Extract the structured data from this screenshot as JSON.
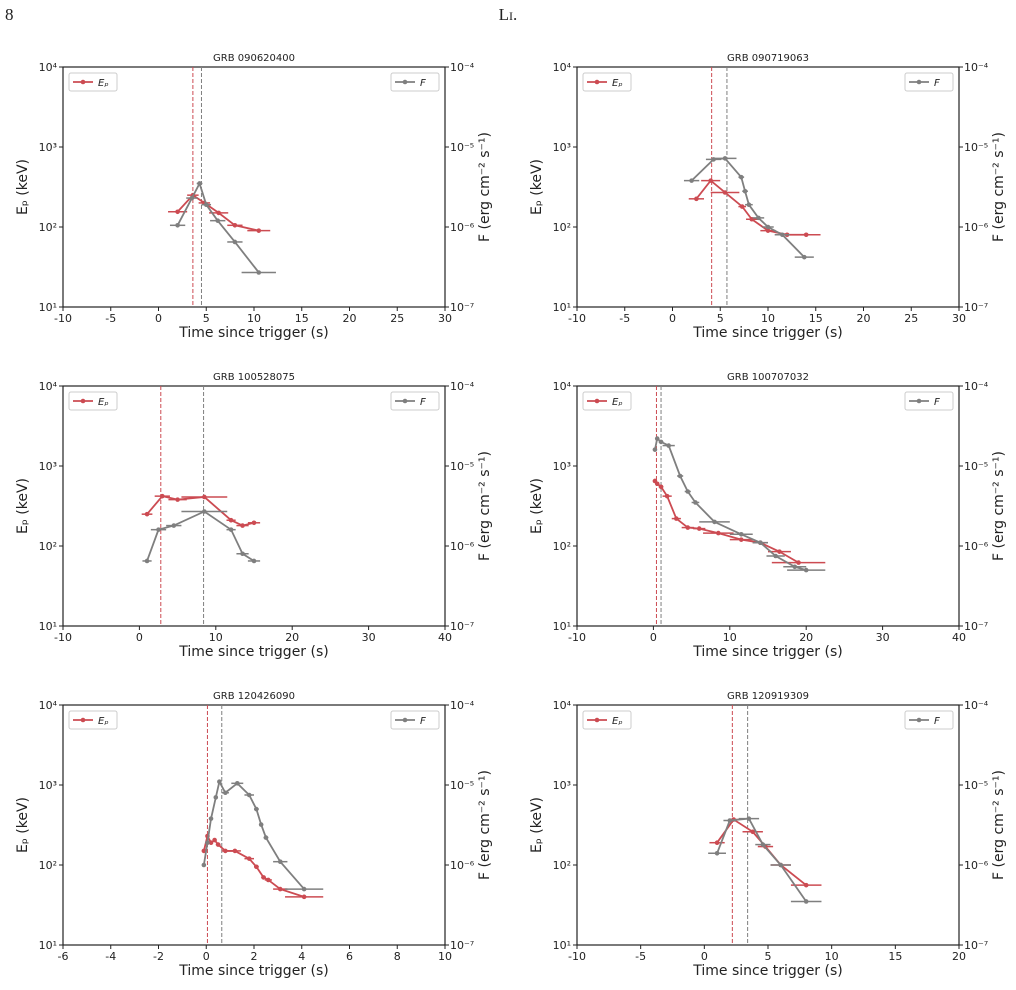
{
  "header": {
    "page_number": "8",
    "running_head": "Li."
  },
  "chart_data": [
    {
      "type": "line",
      "title": "GRB 090620400",
      "xlabel": "Time since trigger (s)",
      "ylabel": "Eₚ (keV)",
      "y2label": "F (erg cm⁻² s⁻¹)",
      "log_y": true,
      "xlim": [
        -10,
        30
      ],
      "xticks": [
        -10,
        -5,
        0,
        5,
        10,
        15,
        20,
        25,
        30
      ],
      "ylim": [
        10,
        10000
      ],
      "yticks": [
        {
          "value": 10,
          "label": "10¹"
        },
        {
          "value": 100,
          "label": "10²"
        },
        {
          "value": 1000,
          "label": "10³"
        },
        {
          "value": 10000,
          "label": "10⁴"
        }
      ],
      "y2lim": [
        1e-07,
        0.0001
      ],
      "y2ticks": [
        {
          "value": 1e-07,
          "label": "10⁻⁷"
        },
        {
          "value": 1e-06,
          "label": "10⁻⁶"
        },
        {
          "value": 1e-05,
          "label": "10⁻⁵"
        },
        {
          "value": 0.0001,
          "label": "10⁻⁴"
        }
      ],
      "vlines": [
        {
          "x": 3.6,
          "color": "#cc4b52"
        },
        {
          "x": 4.5,
          "color": "#7f7f7f"
        }
      ],
      "series": [
        {
          "name": "Eₚ",
          "color": "#cc4b52",
          "legend": "upper left",
          "x": [
            2,
            3.6,
            4.8,
            6.3,
            8,
            10.5
          ],
          "xerr": [
            1,
            0.6,
            0.6,
            1,
            0.8,
            1.2
          ],
          "values": [
            155,
            250,
            200,
            150,
            105,
            90
          ]
        },
        {
          "name": "F",
          "color": "#7f7f7f",
          "legend": "upper right",
          "axis": "y2",
          "x": [
            2,
            3.5,
            4.3,
            5,
            6.2,
            8,
            10.5
          ],
          "xerr": [
            0.8,
            0.6,
            0.3,
            0.5,
            0.8,
            0.8,
            1.8
          ],
          "values": [
            1.05e-06,
            2.3e-06,
            3.5e-06,
            1.9e-06,
            1.2e-06,
            6.5e-07,
            2.7e-07
          ]
        }
      ]
    },
    {
      "type": "line",
      "title": "GRB 090719063",
      "xlabel": "Time since trigger (s)",
      "ylabel": "Eₚ (keV)",
      "y2label": "F (erg cm⁻² s⁻¹)",
      "log_y": true,
      "xlim": [
        -10,
        30
      ],
      "xticks": [
        -10,
        -5,
        0,
        5,
        10,
        15,
        20,
        25,
        30
      ],
      "ylim": [
        10,
        10000
      ],
      "yticks": [
        {
          "value": 10,
          "label": "10¹"
        },
        {
          "value": 100,
          "label": "10²"
        },
        {
          "value": 1000,
          "label": "10³"
        },
        {
          "value": 10000,
          "label": "10⁴"
        }
      ],
      "y2lim": [
        1e-07,
        0.0001
      ],
      "y2ticks": [
        {
          "value": 1e-07,
          "label": "10⁻⁷"
        },
        {
          "value": 1e-06,
          "label": "10⁻⁶"
        },
        {
          "value": 1e-05,
          "label": "10⁻⁵"
        },
        {
          "value": 0.0001,
          "label": "10⁻⁴"
        }
      ],
      "vlines": [
        {
          "x": 4.1,
          "color": "#cc4b52"
        },
        {
          "x": 5.7,
          "color": "#7f7f7f"
        }
      ],
      "series": [
        {
          "name": "Eₚ",
          "color": "#cc4b52",
          "legend": "upper left",
          "x": [
            2.5,
            4,
            5.5,
            7.3,
            8.3,
            10,
            12,
            14
          ],
          "xerr": [
            0.8,
            1,
            1.5,
            0.4,
            0.6,
            0.8,
            1,
            1.5
          ],
          "values": [
            225,
            380,
            270,
            180,
            125,
            90,
            80,
            80
          ]
        },
        {
          "name": "F",
          "color": "#7f7f7f",
          "legend": "upper right",
          "axis": "y2",
          "x": [
            2,
            4.3,
            5.5,
            7.2,
            7.6,
            8,
            9,
            10,
            11.5,
            13.8
          ],
          "xerr": [
            0.8,
            0.8,
            1.2,
            0.3,
            0.3,
            0.4,
            0.6,
            0.6,
            0.8,
            1
          ],
          "values": [
            3.8e-06,
            7e-06,
            7.2e-06,
            4.2e-06,
            2.8e-06,
            1.9e-06,
            1.3e-06,
            1e-06,
            8e-07,
            4.2e-07
          ]
        }
      ]
    },
    {
      "type": "line",
      "title": "GRB 100528075",
      "xlabel": "Time since trigger (s)",
      "ylabel": "Eₚ (keV)",
      "y2label": "F (erg cm⁻² s⁻¹)",
      "log_y": true,
      "xlim": [
        -10,
        40
      ],
      "xticks": [
        -10,
        0,
        10,
        20,
        30,
        40
      ],
      "ylim": [
        10,
        10000
      ],
      "yticks": [
        {
          "value": 10,
          "label": "10¹"
        },
        {
          "value": 100,
          "label": "10²"
        },
        {
          "value": 1000,
          "label": "10³"
        },
        {
          "value": 10000,
          "label": "10⁴"
        }
      ],
      "y2lim": [
        1e-07,
        0.0001
      ],
      "y2ticks": [
        {
          "value": 1e-07,
          "label": "10⁻⁷"
        },
        {
          "value": 1e-06,
          "label": "10⁻⁶"
        },
        {
          "value": 1e-05,
          "label": "10⁻⁵"
        },
        {
          "value": 0.0001,
          "label": "10⁻⁴"
        }
      ],
      "vlines": [
        {
          "x": 2.8,
          "color": "#cc4b52"
        },
        {
          "x": 8.4,
          "color": "#7f7f7f"
        }
      ],
      "series": [
        {
          "name": "Eₚ",
          "color": "#cc4b52",
          "legend": "upper left",
          "x": [
            1,
            3,
            5,
            8.5,
            12,
            13.5,
            15
          ],
          "xerr": [
            0.7,
            1,
            1.2,
            3,
            0.6,
            0.8,
            0.8
          ],
          "values": [
            250,
            420,
            380,
            410,
            210,
            180,
            195
          ]
        },
        {
          "name": "F",
          "color": "#7f7f7f",
          "legend": "upper right",
          "axis": "y2",
          "x": [
            1,
            2.5,
            4.5,
            8.5,
            12,
            13.5,
            15
          ],
          "xerr": [
            0.6,
            1,
            1,
            3,
            0.6,
            0.8,
            0.8
          ],
          "values": [
            6.5e-07,
            1.6e-06,
            1.8e-06,
            2.7e-06,
            1.6e-06,
            8e-07,
            6.5e-07
          ]
        }
      ]
    },
    {
      "type": "line",
      "title": "GRB 100707032",
      "xlabel": "Time since trigger (s)",
      "ylabel": "Eₚ (keV)",
      "y2label": "F (erg cm⁻² s⁻¹)",
      "log_y": true,
      "xlim": [
        -10,
        40
      ],
      "xticks": [
        -10,
        0,
        10,
        20,
        30,
        40
      ],
      "ylim": [
        10,
        10000
      ],
      "yticks": [
        {
          "value": 10,
          "label": "10¹"
        },
        {
          "value": 100,
          "label": "10²"
        },
        {
          "value": 1000,
          "label": "10³"
        },
        {
          "value": 10000,
          "label": "10⁴"
        }
      ],
      "y2lim": [
        1e-07,
        0.0001
      ],
      "y2ticks": [
        {
          "value": 1e-07,
          "label": "10⁻⁷"
        },
        {
          "value": 1e-06,
          "label": "10⁻⁶"
        },
        {
          "value": 1e-05,
          "label": "10⁻⁵"
        },
        {
          "value": 0.0001,
          "label": "10⁻⁴"
        }
      ],
      "vlines": [
        {
          "x": 0.4,
          "color": "#cc4b52"
        },
        {
          "x": 1.0,
          "color": "#7f7f7f"
        }
      ],
      "series": [
        {
          "name": "Eₚ",
          "color": "#cc4b52",
          "legend": "upper left",
          "x": [
            0.2,
            0.5,
            1,
            1.8,
            3,
            4.5,
            6,
            8.5,
            11.5,
            14,
            16.5,
            19
          ],
          "xerr": [
            0.2,
            0.2,
            0.3,
            0.6,
            0.6,
            0.8,
            0.8,
            2,
            1.5,
            1,
            1.5,
            3.5
          ],
          "values": [
            650,
            600,
            550,
            420,
            220,
            170,
            165,
            145,
            120,
            110,
            85,
            62
          ]
        },
        {
          "name": "F",
          "color": "#7f7f7f",
          "legend": "upper right",
          "axis": "y2",
          "x": [
            0.2,
            0.5,
            1,
            2,
            3.5,
            4.5,
            5.5,
            8,
            11.5,
            14,
            16,
            18.5,
            20
          ],
          "xerr": [
            0.1,
            0.2,
            0.3,
            0.8,
            0.4,
            0.4,
            0.5,
            2,
            1.5,
            1,
            1.2,
            1.5,
            2.5
          ],
          "values": [
            1.6e-05,
            2.2e-05,
            2e-05,
            1.8e-05,
            7.5e-06,
            4.8e-06,
            3.5e-06,
            2e-06,
            1.4e-06,
            1.1e-06,
            7.5e-07,
            5.5e-07,
            5e-07
          ]
        }
      ]
    },
    {
      "type": "line",
      "title": "GRB 120426090",
      "xlabel": "Time since trigger (s)",
      "ylabel": "Eₚ (keV)",
      "y2label": "F (erg cm⁻² s⁻¹)",
      "log_y": true,
      "xlim": [
        -6,
        10
      ],
      "xticks": [
        -6,
        -4,
        -2,
        0,
        2,
        4,
        6,
        8,
        10
      ],
      "ylim": [
        10,
        10000
      ],
      "yticks": [
        {
          "value": 10,
          "label": "10¹"
        },
        {
          "value": 100,
          "label": "10²"
        },
        {
          "value": 1000,
          "label": "10³"
        },
        {
          "value": 10000,
          "label": "10⁴"
        }
      ],
      "y2lim": [
        1e-07,
        0.0001
      ],
      "y2ticks": [
        {
          "value": 1e-07,
          "label": "10⁻⁷"
        },
        {
          "value": 1e-06,
          "label": "10⁻⁶"
        },
        {
          "value": 1e-05,
          "label": "10⁻⁵"
        },
        {
          "value": 0.0001,
          "label": "10⁻⁴"
        }
      ],
      "vlines": [
        {
          "x": 0.05,
          "color": "#cc4b52"
        },
        {
          "x": 0.65,
          "color": "#7f7f7f"
        }
      ],
      "series": [
        {
          "name": "Eₚ",
          "color": "#cc4b52",
          "legend": "upper left",
          "x": [
            -0.1,
            0.05,
            0.2,
            0.35,
            0.5,
            0.8,
            1.2,
            1.8,
            2.1,
            2.4,
            2.6,
            3.1,
            4.1
          ],
          "xerr": [
            0.05,
            0.06,
            0.06,
            0.07,
            0.1,
            0.15,
            0.25,
            0.2,
            0.1,
            0.1,
            0.15,
            0.3,
            0.8
          ],
          "values": [
            150,
            230,
            190,
            205,
            180,
            150,
            150,
            120,
            95,
            70,
            65,
            50,
            40
          ]
        },
        {
          "name": "F",
          "color": "#7f7f7f",
          "legend": "upper right",
          "axis": "y2",
          "x": [
            -0.1,
            0.05,
            0.2,
            0.4,
            0.55,
            0.8,
            1.3,
            1.8,
            2.1,
            2.3,
            2.5,
            3.1,
            4.1
          ],
          "xerr": [
            0.05,
            0.06,
            0.08,
            0.08,
            0.08,
            0.15,
            0.25,
            0.2,
            0.1,
            0.08,
            0.1,
            0.3,
            0.8
          ],
          "values": [
            1e-06,
            1.9e-06,
            3.8e-06,
            7e-06,
            1.1e-05,
            8e-06,
            1.05e-05,
            7.5e-06,
            5e-06,
            3.2e-06,
            2.2e-06,
            1.1e-06,
            5e-07
          ]
        }
      ]
    },
    {
      "type": "line",
      "title": "GRB 120919309",
      "xlabel": "Time since trigger (s)",
      "ylabel": "Eₚ (keV)",
      "y2label": "F (erg cm⁻² s⁻¹)",
      "log_y": true,
      "xlim": [
        -10,
        20
      ],
      "xticks": [
        -10,
        -5,
        0,
        5,
        10,
        15,
        20
      ],
      "ylim": [
        10,
        10000
      ],
      "yticks": [
        {
          "value": 10,
          "label": "10¹"
        },
        {
          "value": 100,
          "label": "10²"
        },
        {
          "value": 1000,
          "label": "10³"
        },
        {
          "value": 10000,
          "label": "10⁴"
        }
      ],
      "y2lim": [
        1e-07,
        0.0001
      ],
      "y2ticks": [
        {
          "value": 1e-07,
          "label": "10⁻⁷"
        },
        {
          "value": 1e-06,
          "label": "10⁻⁶"
        },
        {
          "value": 1e-05,
          "label": "10⁻⁵"
        },
        {
          "value": 0.0001,
          "label": "10⁻⁴"
        }
      ],
      "vlines": [
        {
          "x": 2.2,
          "color": "#cc4b52"
        },
        {
          "x": 3.4,
          "color": "#7f7f7f"
        }
      ],
      "series": [
        {
          "name": "Eₚ",
          "color": "#cc4b52",
          "legend": "upper left",
          "x": [
            1,
            2.3,
            3.8,
            4.8,
            6,
            8
          ],
          "xerr": [
            0.6,
            0.4,
            0.8,
            0.6,
            0.8,
            1.2
          ],
          "values": [
            190,
            370,
            260,
            170,
            100,
            56
          ]
        },
        {
          "name": "F",
          "color": "#7f7f7f",
          "legend": "upper right",
          "axis": "y2",
          "x": [
            1,
            2,
            3.5,
            4.6,
            6,
            8
          ],
          "xerr": [
            0.7,
            0.5,
            0.8,
            0.6,
            0.8,
            1.2
          ],
          "values": [
            1.4e-06,
            3.6e-06,
            3.8e-06,
            1.8e-06,
            1e-06,
            3.5e-07
          ]
        }
      ]
    }
  ]
}
